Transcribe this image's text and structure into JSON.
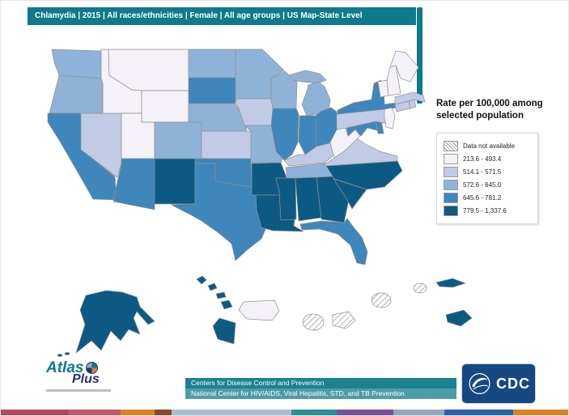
{
  "header": {
    "title": "Chlamydia | 2015 | All races/ethnicities | Female | All age groups | US Map-State Level"
  },
  "legend": {
    "title_line1": "Rate per 100,000 among",
    "title_line2": "selected population",
    "items": [
      {
        "label": "Data not available",
        "type": "hatched"
      },
      {
        "label": "213.6 - 493.4",
        "color": "#f4f2f8"
      },
      {
        "label": "514.1 - 571.5",
        "color": "#c2cbe5"
      },
      {
        "label": "572.6 - 645.0",
        "color": "#8fb3d8"
      },
      {
        "label": "645.6 - 781.2",
        "color": "#3f86bb"
      },
      {
        "label": "779.5 - 1,337.6",
        "color": "#0c5a84"
      }
    ]
  },
  "map": {
    "states": [
      {
        "id": "WA",
        "name": "Washington",
        "category": 3
      },
      {
        "id": "OR",
        "name": "Oregon",
        "category": 3
      },
      {
        "id": "CA",
        "name": "California",
        "category": 4
      },
      {
        "id": "NV",
        "name": "Nevada",
        "category": 2
      },
      {
        "id": "ID",
        "name": "Idaho",
        "category": 1
      },
      {
        "id": "MT",
        "name": "Montana",
        "category": 1
      },
      {
        "id": "WY",
        "name": "Wyoming",
        "category": 1
      },
      {
        "id": "UT",
        "name": "Utah",
        "category": 1
      },
      {
        "id": "CO",
        "name": "Colorado",
        "category": 3
      },
      {
        "id": "AZ",
        "name": "Arizona",
        "category": 4
      },
      {
        "id": "NM",
        "name": "New Mexico",
        "category": 5
      },
      {
        "id": "ND",
        "name": "North Dakota",
        "category": 3
      },
      {
        "id": "SD",
        "name": "South Dakota",
        "category": 4
      },
      {
        "id": "NE",
        "name": "Nebraska",
        "category": 3
      },
      {
        "id": "KS",
        "name": "Kansas",
        "category": 2
      },
      {
        "id": "OK",
        "name": "Oklahoma",
        "category": 4
      },
      {
        "id": "TX",
        "name": "Texas",
        "category": 4
      },
      {
        "id": "MN",
        "name": "Minnesota",
        "category": 3
      },
      {
        "id": "IA",
        "name": "Iowa",
        "category": 2
      },
      {
        "id": "MO",
        "name": "Missouri",
        "category": 3
      },
      {
        "id": "AR",
        "name": "Arkansas",
        "category": 5
      },
      {
        "id": "LA",
        "name": "Louisiana",
        "category": 5
      },
      {
        "id": "WI",
        "name": "Wisconsin",
        "category": 3
      },
      {
        "id": "IL",
        "name": "Illinois",
        "category": 4
      },
      {
        "id": "MI",
        "name": "Michigan",
        "category": 3
      },
      {
        "id": "IN",
        "name": "Indiana",
        "category": 4
      },
      {
        "id": "OH",
        "name": "Ohio",
        "category": 4
      },
      {
        "id": "KY",
        "name": "Kentucky",
        "category": 2
      },
      {
        "id": "TN",
        "name": "Tennessee",
        "category": 3
      },
      {
        "id": "MS",
        "name": "Mississippi",
        "category": 5
      },
      {
        "id": "AL",
        "name": "Alabama",
        "category": 5
      },
      {
        "id": "GA",
        "name": "Georgia",
        "category": 5
      },
      {
        "id": "FL",
        "name": "Florida",
        "category": 4
      },
      {
        "id": "SC",
        "name": "South Carolina",
        "category": 5
      },
      {
        "id": "NC",
        "name": "North Carolina",
        "category": 5
      },
      {
        "id": "VA",
        "name": "Virginia",
        "category": 2
      },
      {
        "id": "WV",
        "name": "West Virginia",
        "category": 1
      },
      {
        "id": "PA",
        "name": "Pennsylvania",
        "category": 2
      },
      {
        "id": "NY",
        "name": "New York",
        "category": 4
      },
      {
        "id": "NJ",
        "name": "New Jersey",
        "category": 1
      },
      {
        "id": "DE",
        "name": "Delaware",
        "category": 4
      },
      {
        "id": "MD",
        "name": "Maryland",
        "category": 4
      },
      {
        "id": "CT",
        "name": "Connecticut",
        "category": 2
      },
      {
        "id": "RI",
        "name": "Rhode Island",
        "category": 2
      },
      {
        "id": "MA",
        "name": "Massachusetts",
        "category": 2
      },
      {
        "id": "VT",
        "name": "Vermont",
        "category": 1
      },
      {
        "id": "NH",
        "name": "New Hampshire",
        "category": 1
      },
      {
        "id": "ME",
        "name": "Maine",
        "category": 1
      },
      {
        "id": "AK",
        "name": "Alaska",
        "category": 5
      },
      {
        "id": "HI",
        "name": "Hawaii",
        "category": 5
      },
      {
        "id": "PR",
        "name": "Puerto Rico",
        "category": 1
      },
      {
        "id": "GU",
        "name": "Guam",
        "category": 0
      },
      {
        "id": "AS",
        "name": "American Samoa",
        "category": 0
      },
      {
        "id": "MP",
        "name": "Northern Mariana Islands",
        "category": 0
      },
      {
        "id": "MP2",
        "name": "Territory (no data)",
        "category": 0
      },
      {
        "id": "VI",
        "name": "U.S. Virgin Islands",
        "category": 5
      },
      {
        "id": "VI2",
        "name": "U.S. Virgin Islands chain",
        "category": 5
      }
    ]
  },
  "footer": {
    "line1": "Centers for Disease Control and Prevention",
    "line2": "National Center for HIV/AIDS, Viral Hepatitis, STD, and TB Prevention",
    "atlas": {
      "line1": "Atlas",
      "line2": "Plus"
    },
    "cdc_logo_text": "CDC",
    "strip": [
      {
        "color": "#b04a5f",
        "width": 12
      },
      {
        "color": "#c05a6a",
        "width": 9
      },
      {
        "color": "#d9822b",
        "width": 6
      },
      {
        "color": "#8a4a2a",
        "width": 3
      },
      {
        "color": "#a9bfce",
        "width": 21
      },
      {
        "color": "#2e8e96",
        "width": 8
      },
      {
        "color": "#7a4f92",
        "width": 10
      },
      {
        "color": "#93a9bd",
        "width": 9
      },
      {
        "color": "#2f5fa8",
        "width": 12
      },
      {
        "color": "#d9822b",
        "width": 10
      }
    ]
  }
}
